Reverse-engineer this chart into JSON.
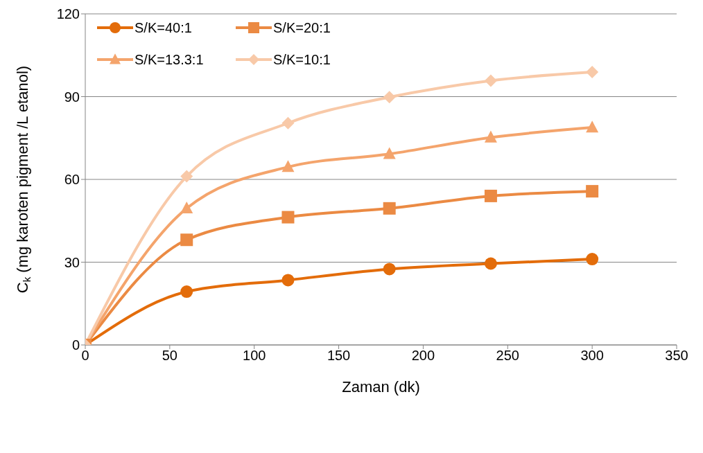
{
  "chart_data": {
    "type": "line",
    "xlabel": "Zaman (dk)",
    "ylabel": "C$_{k}$ (mg karoten pigment /L etanol)",
    "x": [
      0,
      60,
      120,
      180,
      240,
      300
    ],
    "series": [
      {
        "name": "S/K=40:1",
        "color": "#e36c0a",
        "marker": "circle",
        "values": [
          0,
          19.3,
          23.5,
          27.5,
          29.5,
          31.1
        ]
      },
      {
        "name": "S/K=20:1",
        "color": "#eb8a43",
        "marker": "square",
        "values": [
          0,
          38.1,
          46.3,
          49.5,
          54,
          55.7
        ]
      },
      {
        "name": "S/K=13.3:1",
        "color": "#f4a46c",
        "marker": "triangle",
        "values": [
          0,
          49.5,
          64.5,
          69.2,
          75.2,
          78.8
        ]
      },
      {
        "name": "S/K=10:1",
        "color": "#f8c9a8",
        "marker": "diamond",
        "values": [
          0,
          61.1,
          80.4,
          89.8,
          95.8,
          98.9
        ]
      }
    ],
    "xlim": [
      0,
      350
    ],
    "xticks": [
      0,
      50,
      100,
      150,
      200,
      250,
      300,
      350
    ],
    "ylim": [
      0,
      120
    ],
    "yticks": [
      0,
      30,
      60,
      90,
      120
    ],
    "grid": "y",
    "legend": "top left",
    "line_style": "solid"
  }
}
